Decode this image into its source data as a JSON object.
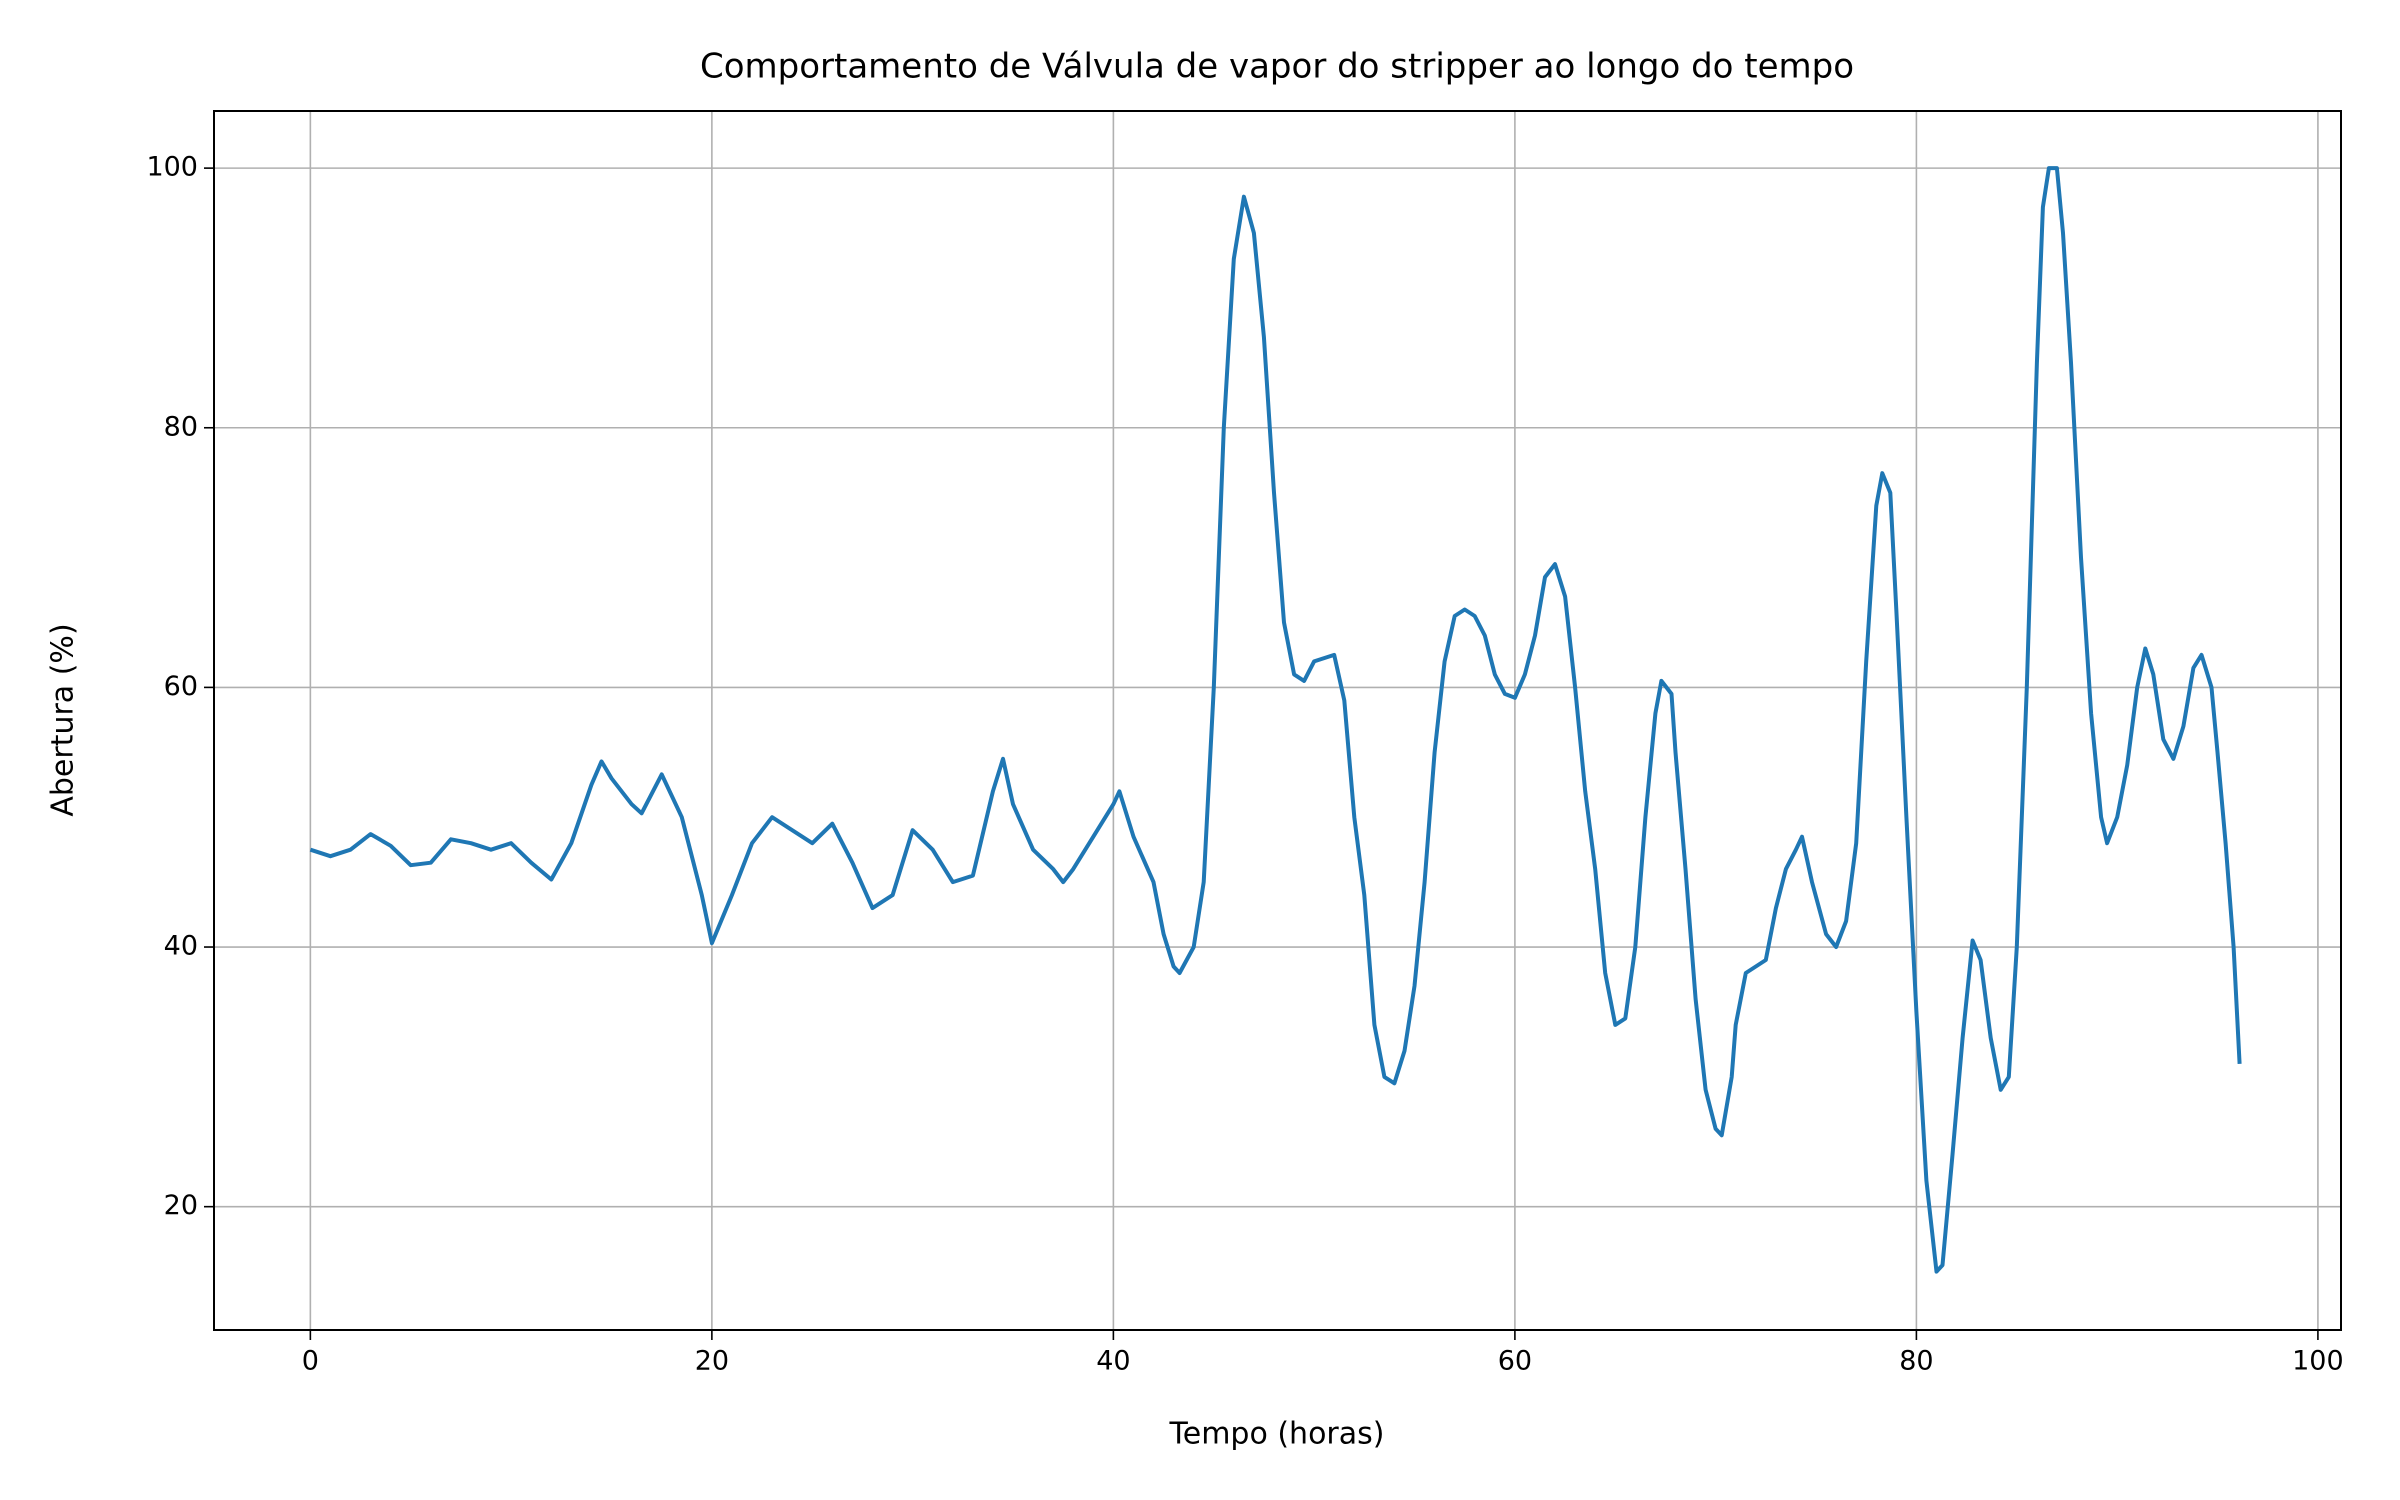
{
  "chart_data": {
    "type": "line",
    "title": "Comportamento de Válvula de vapor do stripper ao longo do tempo",
    "x_label": "Tempo (horas)",
    "y_label": "Abertura (%)",
    "xlim": [
      -4.8,
      101.15
    ],
    "ylim": [
      10.5,
      104.4
    ],
    "xticks": [
      0,
      20,
      40,
      60,
      80,
      100
    ],
    "yticks": [
      20,
      40,
      60,
      80,
      100
    ],
    "grid": true,
    "x": [
      0,
      1,
      2,
      3,
      4,
      5,
      6,
      7,
      8,
      9,
      10,
      11,
      12,
      13,
      14,
      14.5,
      15,
      16,
      16.5,
      17.5,
      18.5,
      19.5,
      20,
      21,
      22,
      23,
      24,
      25,
      26,
      27,
      28,
      29,
      30,
      31,
      32,
      33,
      34,
      34.5,
      35,
      36,
      37,
      37.5,
      38,
      39,
      40,
      40.3,
      41,
      42,
      42.5,
      43,
      43.3,
      44,
      44.5,
      45,
      45.5,
      46,
      46.5,
      47,
      47.5,
      48,
      48.5,
      49,
      49.5,
      50,
      51,
      51.5,
      52,
      52.5,
      53,
      53.5,
      54,
      54.5,
      55,
      55.5,
      56,
      56.5,
      57,
      57.5,
      58,
      58.5,
      59,
      59.5,
      60,
      60.5,
      61,
      61.5,
      62,
      62.5,
      63,
      63.5,
      64,
      64.5,
      65,
      65.5,
      66,
      66.5,
      67,
      67.3,
      67.8,
      68,
      68.5,
      69,
      69.5,
      70,
      70.3,
      70.8,
      71,
      71.5,
      72,
      72.5,
      73,
      73.5,
      74,
      74.3,
      74.8,
      75.5,
      76,
      76.5,
      77,
      77.5,
      78,
      78.3,
      78.7,
      79,
      79.5,
      80,
      80.5,
      81,
      81.3,
      81.8,
      82.3,
      82.8,
      83.2,
      83.7,
      84.2,
      84.6,
      85,
      85.5,
      86,
      86.3,
      86.6,
      87,
      87.3,
      87.7,
      88.2,
      88.7,
      89.2,
      89.5,
      90,
      90.5,
      91,
      91.4,
      91.8,
      92.3,
      92.8,
      93.3,
      93.8,
      94.2,
      94.7,
      95,
      95.4,
      95.8,
      96.1
    ],
    "series": [
      {
        "name": "Válvula de vapor do stripper",
        "color": "#1f77b4",
        "values": [
          47.5,
          47,
          47.5,
          48.7,
          47.8,
          46.3,
          46.5,
          48.3,
          48,
          47.5,
          48,
          46.5,
          45.2,
          48,
          52.5,
          54.3,
          53,
          51,
          50.3,
          53.3,
          50,
          44,
          40.3,
          44,
          48,
          50,
          49,
          48,
          49.5,
          46.5,
          43,
          44,
          49,
          47.5,
          45,
          45.5,
          52,
          54.5,
          51,
          47.5,
          46,
          45,
          46,
          48.5,
          51,
          52,
          48.5,
          45,
          41,
          38.5,
          38,
          40,
          45,
          60,
          80,
          93,
          97.8,
          95,
          87,
          75,
          65,
          61,
          60.5,
          62,
          62.5,
          59,
          50,
          44,
          34,
          30,
          29.5,
          32,
          37,
          45,
          55,
          62,
          65.5,
          66,
          65.5,
          64,
          61,
          59.5,
          59.2,
          61,
          64,
          68.5,
          69.5,
          67,
          60,
          52,
          46,
          38,
          34,
          34.5,
          40,
          50,
          58,
          60.5,
          59.5,
          55,
          46,
          36,
          29,
          26,
          25.5,
          30,
          34,
          38,
          38.5,
          39,
          43,
          46,
          47.5,
          48.5,
          45,
          41,
          40,
          42,
          48,
          62,
          74,
          76.5,
          75,
          66,
          50,
          35,
          22,
          15,
          15.5,
          24,
          33,
          40.5,
          39,
          33,
          29,
          30,
          40,
          60,
          85,
          97,
          100,
          100,
          95,
          85,
          70,
          58,
          50,
          48,
          50,
          54,
          60,
          63,
          61,
          56,
          54.5,
          57,
          61.5,
          62.5,
          60,
          55,
          48,
          40,
          31
        ]
      }
    ]
  }
}
